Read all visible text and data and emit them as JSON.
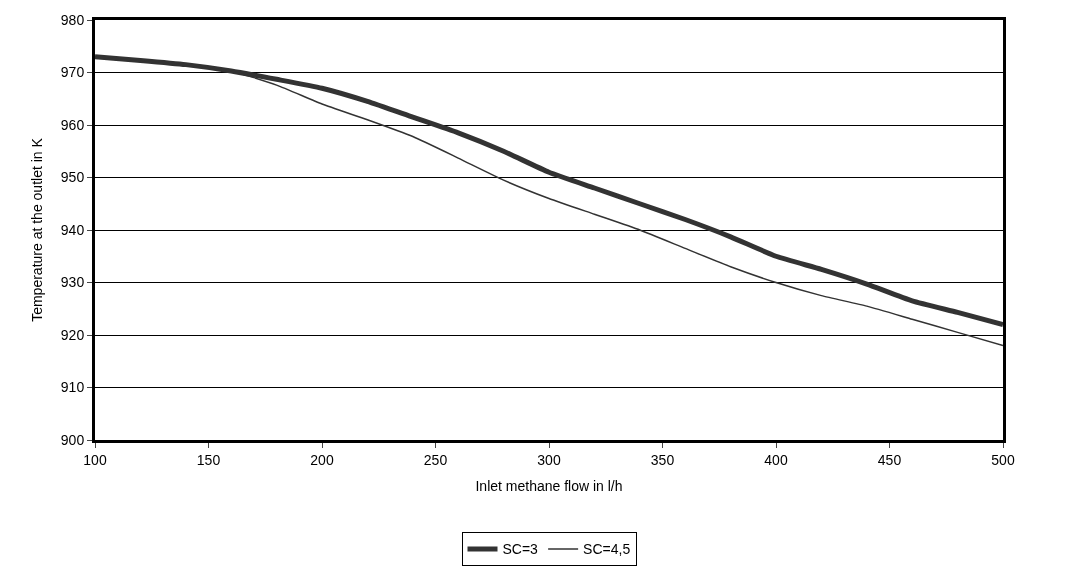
{
  "chart_data": {
    "type": "line",
    "xlabel": "Inlet methane flow in l/h",
    "ylabel": "Temperature at the outlet in K",
    "x": [
      100,
      120,
      140,
      160,
      180,
      200,
      220,
      240,
      260,
      280,
      300,
      320,
      340,
      360,
      380,
      400,
      420,
      440,
      460,
      480,
      500
    ],
    "series": [
      {
        "name": "SC=3",
        "color": "#333333",
        "values": [
          973,
          972.3,
          971.5,
          970.3,
          968.7,
          967,
          964.5,
          961.5,
          958.5,
          955,
          951,
          948,
          945,
          942,
          938.7,
          935,
          932.5,
          929.7,
          926.5,
          924.3,
          922
        ]
      },
      {
        "name": "SC=4,5",
        "color": "#333333",
        "values": [
          973,
          972.3,
          971.5,
          970.3,
          967.6,
          964,
          961,
          957.8,
          953.7,
          949.5,
          946,
          943,
          940,
          936.5,
          933,
          930,
          927.5,
          925.5,
          923,
          920.5,
          918
        ]
      }
    ],
    "xlim": [
      100,
      500
    ],
    "xticks": [
      100,
      150,
      200,
      250,
      300,
      350,
      400,
      450,
      500
    ],
    "ylim": [
      900,
      980
    ],
    "yticks": [
      900,
      910,
      920,
      930,
      940,
      950,
      960,
      970,
      980
    ],
    "grid": "y",
    "legend": "bottom",
    "marker": "none",
    "line_style": "solid"
  }
}
